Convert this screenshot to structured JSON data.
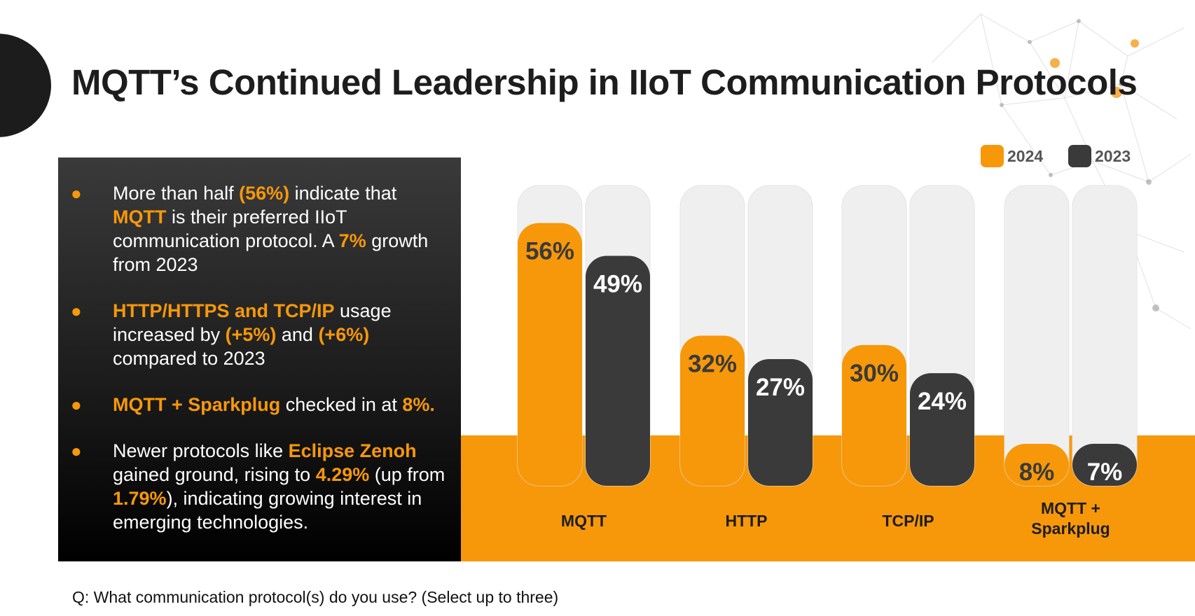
{
  "title": "MQTT’s Continued Leadership in IIoT Communication Protocols",
  "footnote": "Q: What communication protocol(s) do you use? (Select up to three)",
  "colors": {
    "accent": "#f7980a",
    "dark": "#3a3a3a",
    "track": "#efefef"
  },
  "bullets": [
    {
      "parts": [
        {
          "t": "More than half ",
          "hl": false
        },
        {
          "t": "(56%)",
          "hl": true
        },
        {
          "t": " indicate that ",
          "hl": false
        },
        {
          "t": "MQTT",
          "hl": true
        },
        {
          "t": " is their preferred IIoT communication protocol. A ",
          "hl": false
        },
        {
          "t": "7%",
          "hl": true
        },
        {
          "t": " growth from 2023",
          "hl": false
        }
      ]
    },
    {
      "parts": [
        {
          "t": "HTTP/HTTPS and TCP/IP",
          "hl": true
        },
        {
          "t": "  usage increased by ",
          "hl": false
        },
        {
          "t": "(+5%)",
          "hl": true
        },
        {
          "t": " and ",
          "hl": false
        },
        {
          "t": "(+6%)",
          "hl": true
        },
        {
          "t": " compared to 2023",
          "hl": false
        }
      ]
    },
    {
      "parts": [
        {
          "t": "MQTT + Sparkplug",
          "hl": true
        },
        {
          "t": " checked in at ",
          "hl": false
        },
        {
          "t": "8%.",
          "hl": true
        }
      ]
    },
    {
      "parts": [
        {
          "t": "Newer protocols like ",
          "hl": false
        },
        {
          "t": "Eclipse Zenoh",
          "hl": true
        },
        {
          "t": " gained ground, rising to ",
          "hl": false
        },
        {
          "t": "4.29%",
          "hl": true
        },
        {
          "t": " (up from ",
          "hl": false
        },
        {
          "t": "1.79%",
          "hl": true
        },
        {
          "t": "), indicating growing interest in emerging technologies.",
          "hl": false
        }
      ]
    }
  ],
  "chart_data": {
    "type": "bar",
    "categories": [
      "MQTT",
      "HTTP",
      "TCP/IP",
      "MQTT + Sparkplug"
    ],
    "series": [
      {
        "name": "2024",
        "values": [
          56,
          32,
          30,
          8
        ],
        "color": "#f7980a",
        "label_color": "#3a3a3a"
      },
      {
        "name": "2023",
        "values": [
          49,
          27,
          24,
          7
        ],
        "color": "#3a3a3a",
        "label_color": "#ffffff"
      }
    ],
    "value_suffix": "%",
    "ylim": [
      0,
      64
    ],
    "legend": "top-right",
    "grid": false
  }
}
